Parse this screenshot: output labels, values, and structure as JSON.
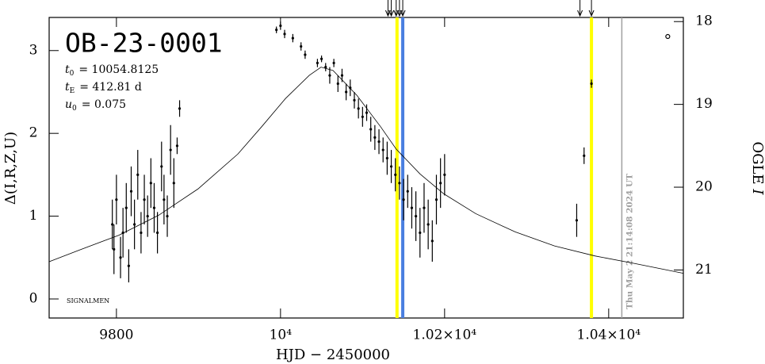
{
  "chart_data": {
    "type": "scatter",
    "title": "OB-23-0001",
    "params": [
      {
        "symbol": "t",
        "sub": "0",
        "text": "= 10054.8125"
      },
      {
        "symbol": "t",
        "sub": "E",
        "text": "= 412.81 d"
      },
      {
        "symbol": "u",
        "sub": "0",
        "text": "= 0.075"
      }
    ],
    "xlabel": "HJD − 2450000",
    "ylabel": "Δ(I,R,Z,U)",
    "y2label": "OGLE",
    "y2label_italic": "I",
    "footnote": "SIGNALMEN",
    "timestamp": "Thu May  2 21:14:08 2024 UT",
    "xlim": [
      9718,
      10491
    ],
    "xticks": [
      9800,
      {
        "value": 10000,
        "label": "10⁴"
      },
      {
        "value": 10200,
        "label": "1.02×10⁴"
      },
      {
        "value": 10400,
        "label": "1.04×10⁴"
      }
    ],
    "ylim": [
      -0.23,
      3.4
    ],
    "yticks": [
      0,
      1,
      2,
      3
    ],
    "y2lim": [
      21.58,
      17.95
    ],
    "y2ticks": [
      18,
      19,
      20,
      21
    ],
    "color": "#000000",
    "x": [
      9795,
      9797,
      9800,
      9805,
      9808,
      9812,
      9815,
      9818,
      9822,
      9826,
      9830,
      9834,
      9838,
      9842,
      9846,
      9850,
      9855,
      9858,
      9862,
      9866,
      9870,
      9874,
      9877,
      9995,
      10000,
      10005,
      10015,
      10025,
      10030,
      10045,
      10050,
      10055,
      10060,
      10065,
      10070,
      10075,
      10080,
      10085,
      10090,
      10095,
      10100,
      10105,
      10110,
      10115,
      10120,
      10125,
      10130,
      10135,
      10140,
      10145,
      10150,
      10155,
      10160,
      10165,
      10170,
      10175,
      10180,
      10185,
      10190,
      10195,
      10200,
      10361,
      10370,
      10379
    ],
    "values": [
      0.9,
      0.6,
      1.2,
      0.5,
      0.8,
      1.1,
      0.4,
      1.3,
      0.9,
      1.5,
      0.8,
      1.2,
      1.0,
      1.4,
      1.1,
      0.8,
      1.6,
      1.2,
      1.0,
      1.8,
      1.4,
      1.85,
      2.3,
      3.25,
      3.3,
      3.2,
      3.15,
      3.05,
      2.95,
      2.85,
      2.9,
      2.8,
      2.7,
      2.85,
      2.6,
      2.7,
      2.5,
      2.55,
      2.4,
      2.3,
      2.2,
      2.25,
      2.05,
      1.95,
      1.9,
      1.8,
      1.7,
      1.6,
      1.5,
      1.4,
      1.2,
      1.3,
      1.1,
      1.0,
      0.8,
      1.1,
      0.9,
      0.7,
      1.2,
      1.4,
      1.5,
      0.95,
      1.73,
      2.6
    ],
    "errors": [
      0.3,
      0.3,
      0.3,
      0.25,
      0.3,
      0.3,
      0.2,
      0.3,
      0.3,
      0.3,
      0.25,
      0.3,
      0.25,
      0.3,
      0.3,
      0.25,
      0.3,
      0.3,
      0.25,
      0.3,
      0.3,
      0.1,
      0.1,
      0.04,
      0.05,
      0.05,
      0.05,
      0.05,
      0.05,
      0.05,
      0.04,
      0.05,
      0.1,
      0.05,
      0.1,
      0.08,
      0.1,
      0.1,
      0.1,
      0.12,
      0.12,
      0.1,
      0.15,
      0.15,
      0.15,
      0.15,
      0.2,
      0.2,
      0.2,
      0.2,
      0.25,
      0.2,
      0.25,
      0.3,
      0.3,
      0.3,
      0.3,
      0.25,
      0.3,
      0.3,
      0.25,
      0.2,
      0.1,
      0.05
    ],
    "open_points": {
      "x": [
        10472
      ],
      "values": [
        3.17
      ]
    },
    "model": {
      "color": "#000000",
      "x": [
        9718,
        9754.7,
        9803,
        9851.3,
        9899.6,
        9948,
        9977,
        10006,
        10035,
        10049.4,
        10064,
        10093,
        10122,
        10141,
        10170,
        10199,
        10238,
        10286,
        10334,
        10383,
        10431,
        10491
      ],
      "values": [
        0.45,
        0.59,
        0.77,
        1.01,
        1.33,
        1.75,
        2.08,
        2.42,
        2.7,
        2.8,
        2.76,
        2.46,
        2.08,
        1.81,
        1.51,
        1.27,
        1.03,
        0.81,
        0.64,
        0.52,
        0.43,
        0.31
      ]
    },
    "vlines": [
      {
        "x": 10142,
        "color": "#ffff00"
      },
      {
        "x": 10149,
        "color": "#4a7fe0"
      },
      {
        "x": 10379,
        "color": "#ffff00"
      },
      {
        "x": 10416,
        "color": "#a0a0a0"
      }
    ],
    "arrows": [
      10131,
      10135,
      10141,
      10145,
      10149,
      10365,
      10379
    ]
  }
}
